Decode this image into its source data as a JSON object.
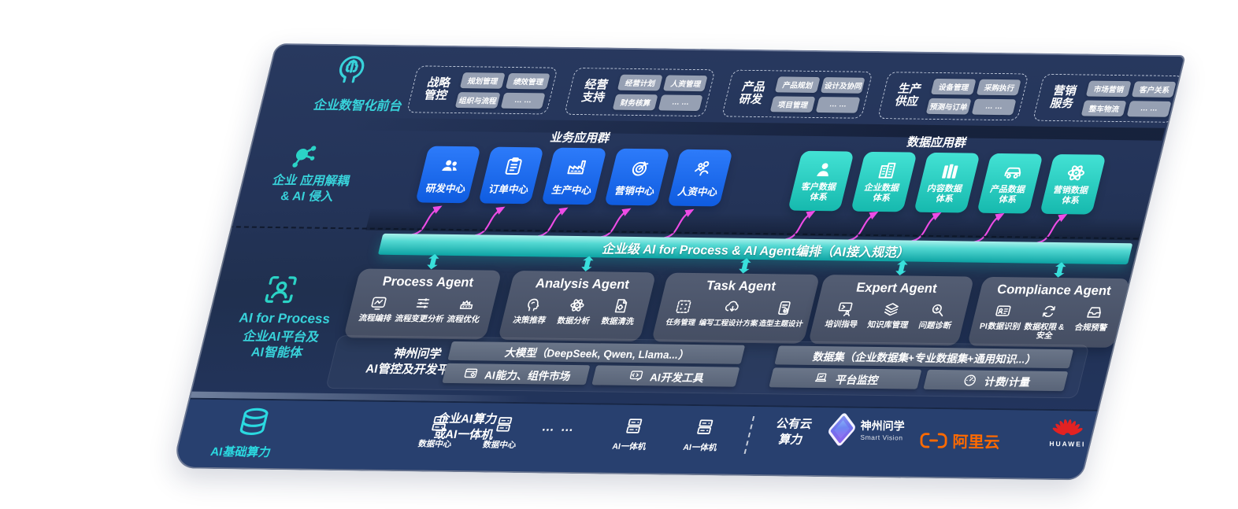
{
  "colors": {
    "accent_teal": "#38d2da",
    "box_blue": "#1b6af0",
    "box_teal": "#2bd3c6",
    "magenta_arrow": "#ee4ce6",
    "banner_teal": "#2cc8c4",
    "panel_navy": "#24365e",
    "infra_navy": "#28406f",
    "pill_gray": "#96a0b3",
    "card_slate": "#4b5569",
    "bar_gray": "#5e6a7e",
    "ali_orange": "#ff6a00",
    "huawei_red": "#e32222"
  },
  "front": {
    "label": "企业数智化前台",
    "icon": "brain-head",
    "groups": [
      {
        "t1": "战略",
        "t2": "管控",
        "items": [
          "规划管理",
          "绩效管理",
          "组织与流程",
          "… …"
        ]
      },
      {
        "t1": "经营",
        "t2": "支持",
        "items": [
          "经营计划",
          "人资管理",
          "财务核算",
          "… …"
        ]
      },
      {
        "t1": "产品",
        "t2": "研发",
        "items": [
          "产品规划",
          "设计及协同",
          "项目管理",
          "… …"
        ]
      },
      {
        "t1": "生产",
        "t2": "供应",
        "items": [
          "设备管理",
          "采购执行",
          "预测与订单",
          "… …"
        ]
      },
      {
        "t1": "营销",
        "t2": "服务",
        "items": [
          "市场营销",
          "客户关系",
          "整车物流",
          "… …"
        ]
      }
    ]
  },
  "apps": {
    "label_line1": "企业 应用解耦",
    "label_line2": "& AI 侵入",
    "icon": "molecule",
    "business_title": "业务应用群",
    "data_title": "数据应用群",
    "business_boxes": [
      {
        "label": "研发中心",
        "icon": "team"
      },
      {
        "label": "订单中心",
        "icon": "clipboard"
      },
      {
        "label": "生产中心",
        "icon": "factory"
      },
      {
        "label": "营销中心",
        "icon": "target"
      },
      {
        "label": "人资中心",
        "icon": "hr"
      }
    ],
    "data_boxes": [
      {
        "l1": "客户数据",
        "l2": "体系",
        "icon": "person"
      },
      {
        "l1": "企业数据",
        "l2": "体系",
        "icon": "building"
      },
      {
        "l1": "内容数据",
        "l2": "体系",
        "icon": "columns"
      },
      {
        "l1": "产品数据",
        "l2": "体系",
        "icon": "car"
      },
      {
        "l1": "营销数据",
        "l2": "体系",
        "icon": "atom"
      }
    ]
  },
  "banner": {
    "text": "企业级 AI for Process & AI Agent编排（AI接入规范）"
  },
  "ai_platform": {
    "label_line1": "AI for Process",
    "label_line2": "企业AI平台及",
    "label_line3": "AI智能体",
    "icon": "scan-person",
    "agents": [
      {
        "title": "Process Agent",
        "items": [
          {
            "label": "流程编排",
            "icon": "wave"
          },
          {
            "label": "流程变更分析",
            "icon": "sliders"
          },
          {
            "label": "流程优化",
            "icon": "machine"
          }
        ]
      },
      {
        "title": "Analysis Agent",
        "items": [
          {
            "label": "决策推荐",
            "icon": "head"
          },
          {
            "label": "数据分析",
            "icon": "atom"
          },
          {
            "label": "数据清洗",
            "icon": "docgear"
          }
        ]
      },
      {
        "title": "Task Agent",
        "items": [
          {
            "label": "任务管理",
            "icon": "grid"
          },
          {
            "label": "编写工程设计方案",
            "icon": "cloud"
          },
          {
            "label": "造型主题设计",
            "icon": "tablet"
          }
        ]
      },
      {
        "title": "Expert Agent",
        "items": [
          {
            "label": "培训指导",
            "icon": "trainer"
          },
          {
            "label": "知识库管理",
            "icon": "layers"
          },
          {
            "label": "问题诊断",
            "icon": "search"
          }
        ]
      },
      {
        "title": "Compliance Agent",
        "items": [
          {
            "label": "PI数据识别",
            "icon": "idcard"
          },
          {
            "label": "数据权限 & 安全",
            "icon": "sync"
          },
          {
            "label": "合规预警",
            "icon": "tray"
          }
        ]
      }
    ],
    "platform": {
      "label_line1": "神州问学",
      "label_line2": "AI管控及开发平台",
      "model_bar": "大模型（DeepSeek, Qwen, Llama...）",
      "dataset_bar": "数据集（企业数据集+专业数据集+通用知识...）",
      "tool_bars": [
        {
          "label": "AI能力、组件市场",
          "icon": "market"
        },
        {
          "label": "AI开发工具",
          "icon": "devtool"
        },
        {
          "label": "平台监控",
          "icon": "laptop"
        },
        {
          "label": "计费/计量",
          "icon": "gauge"
        }
      ]
    }
  },
  "infra": {
    "label": "AI基础算力",
    "icon": "database",
    "compute_line1": "企业AI算力",
    "compute_line2": "或AI一体机",
    "nodes": [
      {
        "label": "数据中心",
        "icon": "server"
      },
      {
        "label": "数据中心",
        "icon": "server"
      },
      {
        "label": "AI一体机",
        "icon": "server"
      },
      {
        "label": "AI一体机",
        "icon": "server"
      }
    ],
    "ellipsis": "… …",
    "cloud_line1": "公有云",
    "cloud_line2": "算力",
    "vendors": {
      "smartvision": {
        "name": "神州问学",
        "sub": "Smart Vision"
      },
      "alicloud": {
        "name": "阿里云"
      },
      "huawei": {
        "name": "HUAWEI"
      }
    }
  }
}
